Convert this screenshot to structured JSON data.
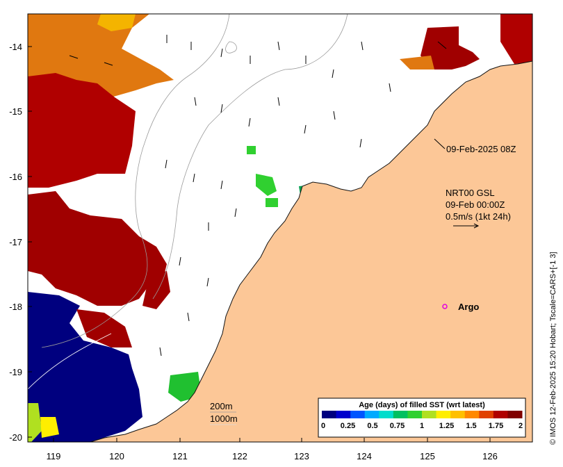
{
  "map": {
    "x_ticks": [
      "119",
      "120",
      "121",
      "122",
      "123",
      "124",
      "125",
      "126"
    ],
    "y_ticks": [
      "-14",
      "-15",
      "-16",
      "-17",
      "-18",
      "-19",
      "-20"
    ],
    "colors": {
      "land": "#fcc797",
      "coast": "#111111",
      "sea": "#ffffff",
      "contour": "#9a9a9a",
      "argo": "#e000e0"
    }
  },
  "annotations": {
    "time_label": "09-Feb-2025 08Z",
    "current_title": "NRT00 GSL",
    "current_date": "09-Feb 00:00Z",
    "current_scale": "0.5m/s (1kt 24h)",
    "argo_label": "Argo",
    "depth_200": "200m",
    "depth_1000": "1000m"
  },
  "colorbar": {
    "title": "Age (days) of filled SST (wrt latest)",
    "ticks": [
      "0",
      "0.25",
      "0.5",
      "0.75",
      "1",
      "1.25",
      "1.5",
      "1.75",
      "2"
    ],
    "colors": [
      "#00007f",
      "#0000cc",
      "#0055ff",
      "#00aaff",
      "#00ddcc",
      "#00c060",
      "#30d030",
      "#b0e020",
      "#ffee00",
      "#ffc000",
      "#ff8800",
      "#e04000",
      "#b00000",
      "#800000"
    ]
  },
  "credit": "© IMOS 12-Feb-2025 15:20 Hobart; Tscale=CARS+[-1 3]"
}
